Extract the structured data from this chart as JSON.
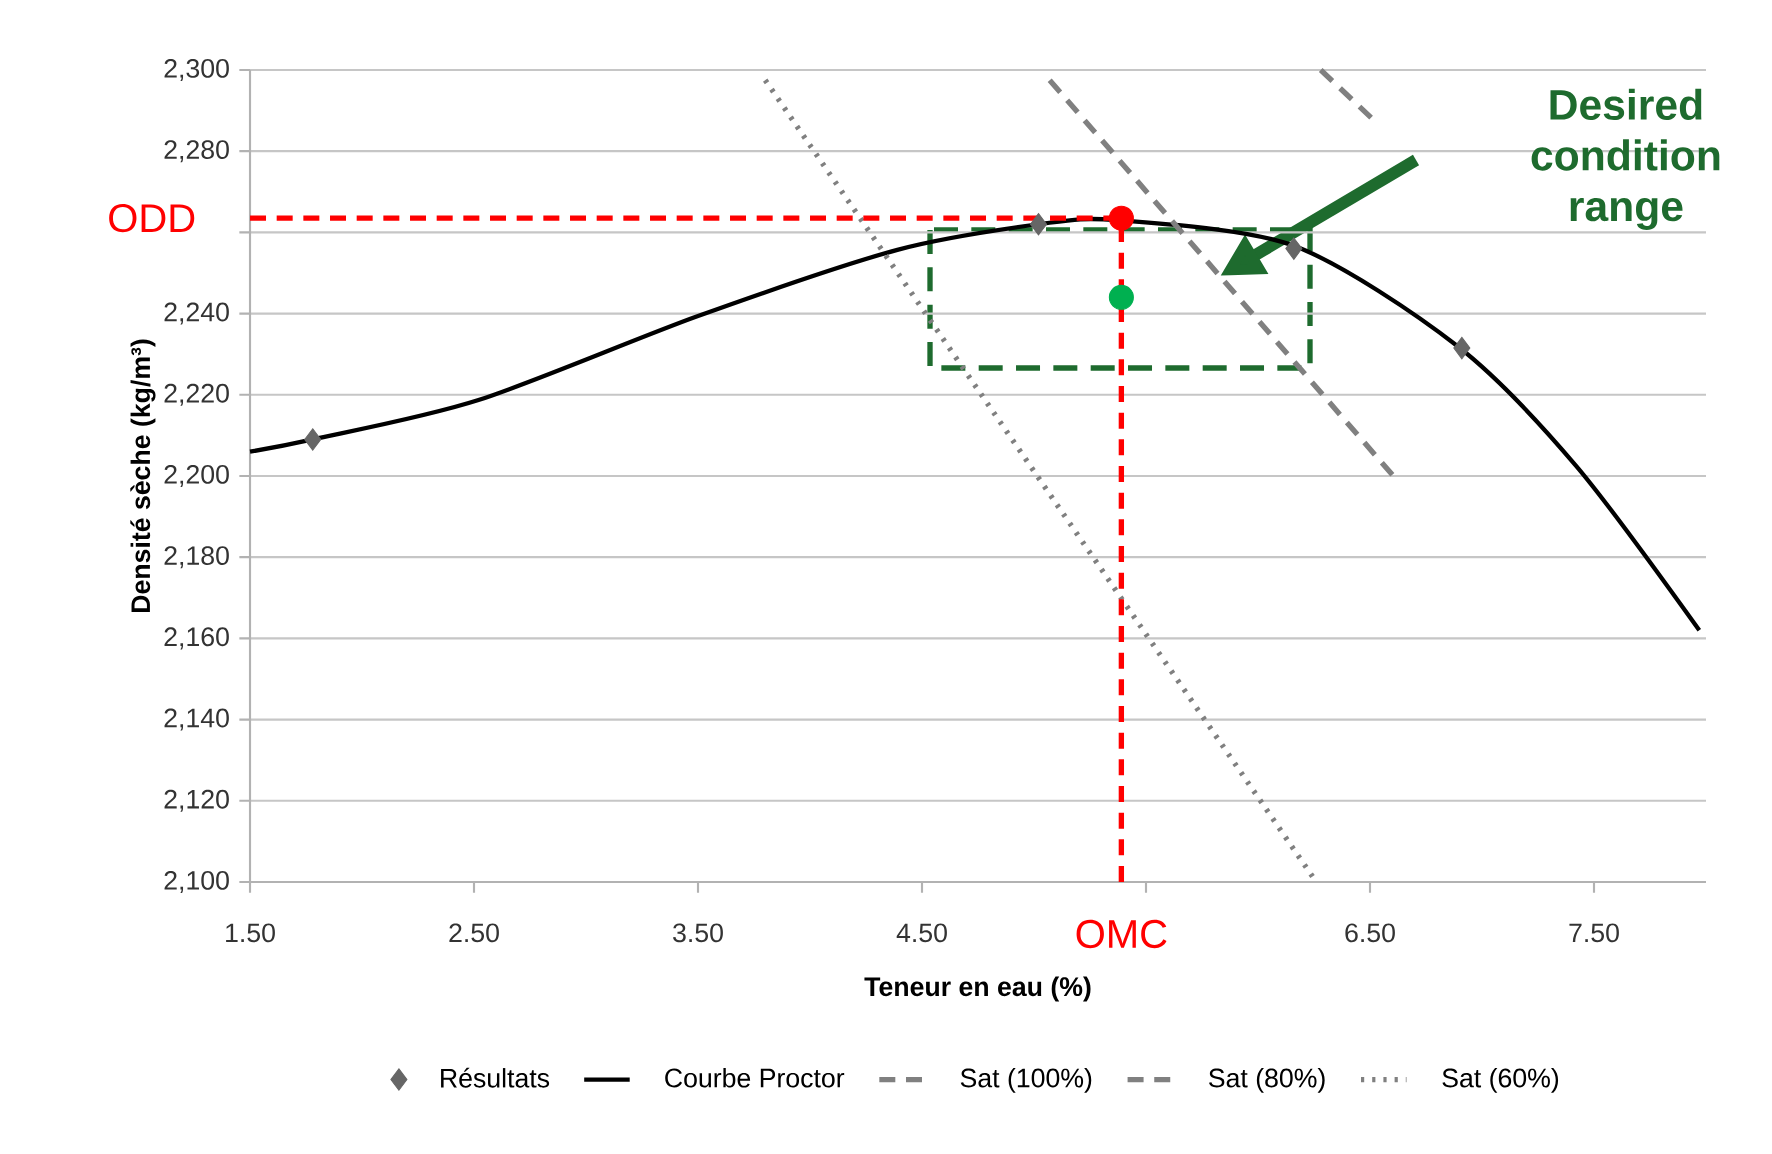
{
  "chart_data": {
    "type": "line",
    "xlabel": "Teneur en eau (%)",
    "ylabel": "Densité sèche (kg/m³)",
    "xlim": [
      1.5,
      8.0
    ],
    "ylim": [
      2100,
      2300
    ],
    "xticks": [
      {
        "value": 1.5,
        "label": "1.50"
      },
      {
        "value": 2.5,
        "label": "2.50"
      },
      {
        "value": 3.5,
        "label": "3.50"
      },
      {
        "value": 4.5,
        "label": "4.50"
      },
      {
        "value": 5.5,
        "label": null
      },
      {
        "value": 6.5,
        "label": "6.50"
      },
      {
        "value": 7.5,
        "label": "7.50"
      }
    ],
    "yticks": [
      {
        "value": 2100,
        "label": "2,100"
      },
      {
        "value": 2120,
        "label": "2,120"
      },
      {
        "value": 2140,
        "label": "2,140"
      },
      {
        "value": 2160,
        "label": "2,160"
      },
      {
        "value": 2180,
        "label": "2,180"
      },
      {
        "value": 2200,
        "label": "2,200"
      },
      {
        "value": 2220,
        "label": "2,220"
      },
      {
        "value": 2240,
        "label": "2,240"
      },
      {
        "value": 2260,
        "label": null
      },
      {
        "value": 2280,
        "label": "2,280"
      },
      {
        "value": 2300,
        "label": "2,300"
      }
    ],
    "grid": "y",
    "legend": "bottom",
    "series": [
      {
        "name": "Résultats",
        "type": "scatter",
        "marker": "diamond",
        "color": "#666666",
        "x": [
          1.78,
          5.02,
          6.16,
          6.91
        ],
        "values": [
          2209,
          2262,
          2256,
          2231.5
        ]
      },
      {
        "name": "Courbe Proctor",
        "line_style": "solid",
        "color": "#000000",
        "x": [
          1.5,
          1.78,
          2.52,
          3.5,
          4.39,
          5.02,
          5.37,
          6.16,
          6.89,
          7.42,
          7.97
        ],
        "values": [
          2206,
          2209,
          2218.7,
          2239.4,
          2255.7,
          2262,
          2263,
          2256.7,
          2232,
          2202.5,
          2162
        ]
      },
      {
        "name": "Sat (100%)",
        "line_style": "dashed",
        "color": "#808080",
        "x": [
          5.07,
          6.62
        ],
        "values": [
          2297.5,
          2199
        ]
      },
      {
        "name": "Sat (80%)",
        "line_style": "dashed",
        "color": "#808080",
        "x": [
          6.28,
          6.51
        ],
        "values": [
          2300,
          2288
        ]
      },
      {
        "name": "Sat (60%)",
        "line_style": "dotted",
        "color": "#808080",
        "x": [
          3.8,
          6.26
        ],
        "values": [
          2297.5,
          2100
        ]
      },
      {
        "type": "scatter",
        "marker": "circle",
        "color": "#ff0000",
        "x": [
          5.39
        ],
        "values": [
          2263.5
        ]
      },
      {
        "type": "scatter",
        "marker": "circle",
        "color": "#00b050",
        "x": [
          5.39
        ],
        "values": [
          2244
        ]
      }
    ],
    "ref_lines": [
      {
        "axis": "y",
        "value": 2263.5,
        "label": "ODD",
        "color": "#ff0000",
        "line_style": "dashed"
      },
      {
        "axis": "x",
        "value": 5.39,
        "label": "OMC",
        "color": "#ff0000",
        "line_style": "dashed"
      }
    ],
    "annotations": [
      "Desired condition range"
    ]
  }
}
